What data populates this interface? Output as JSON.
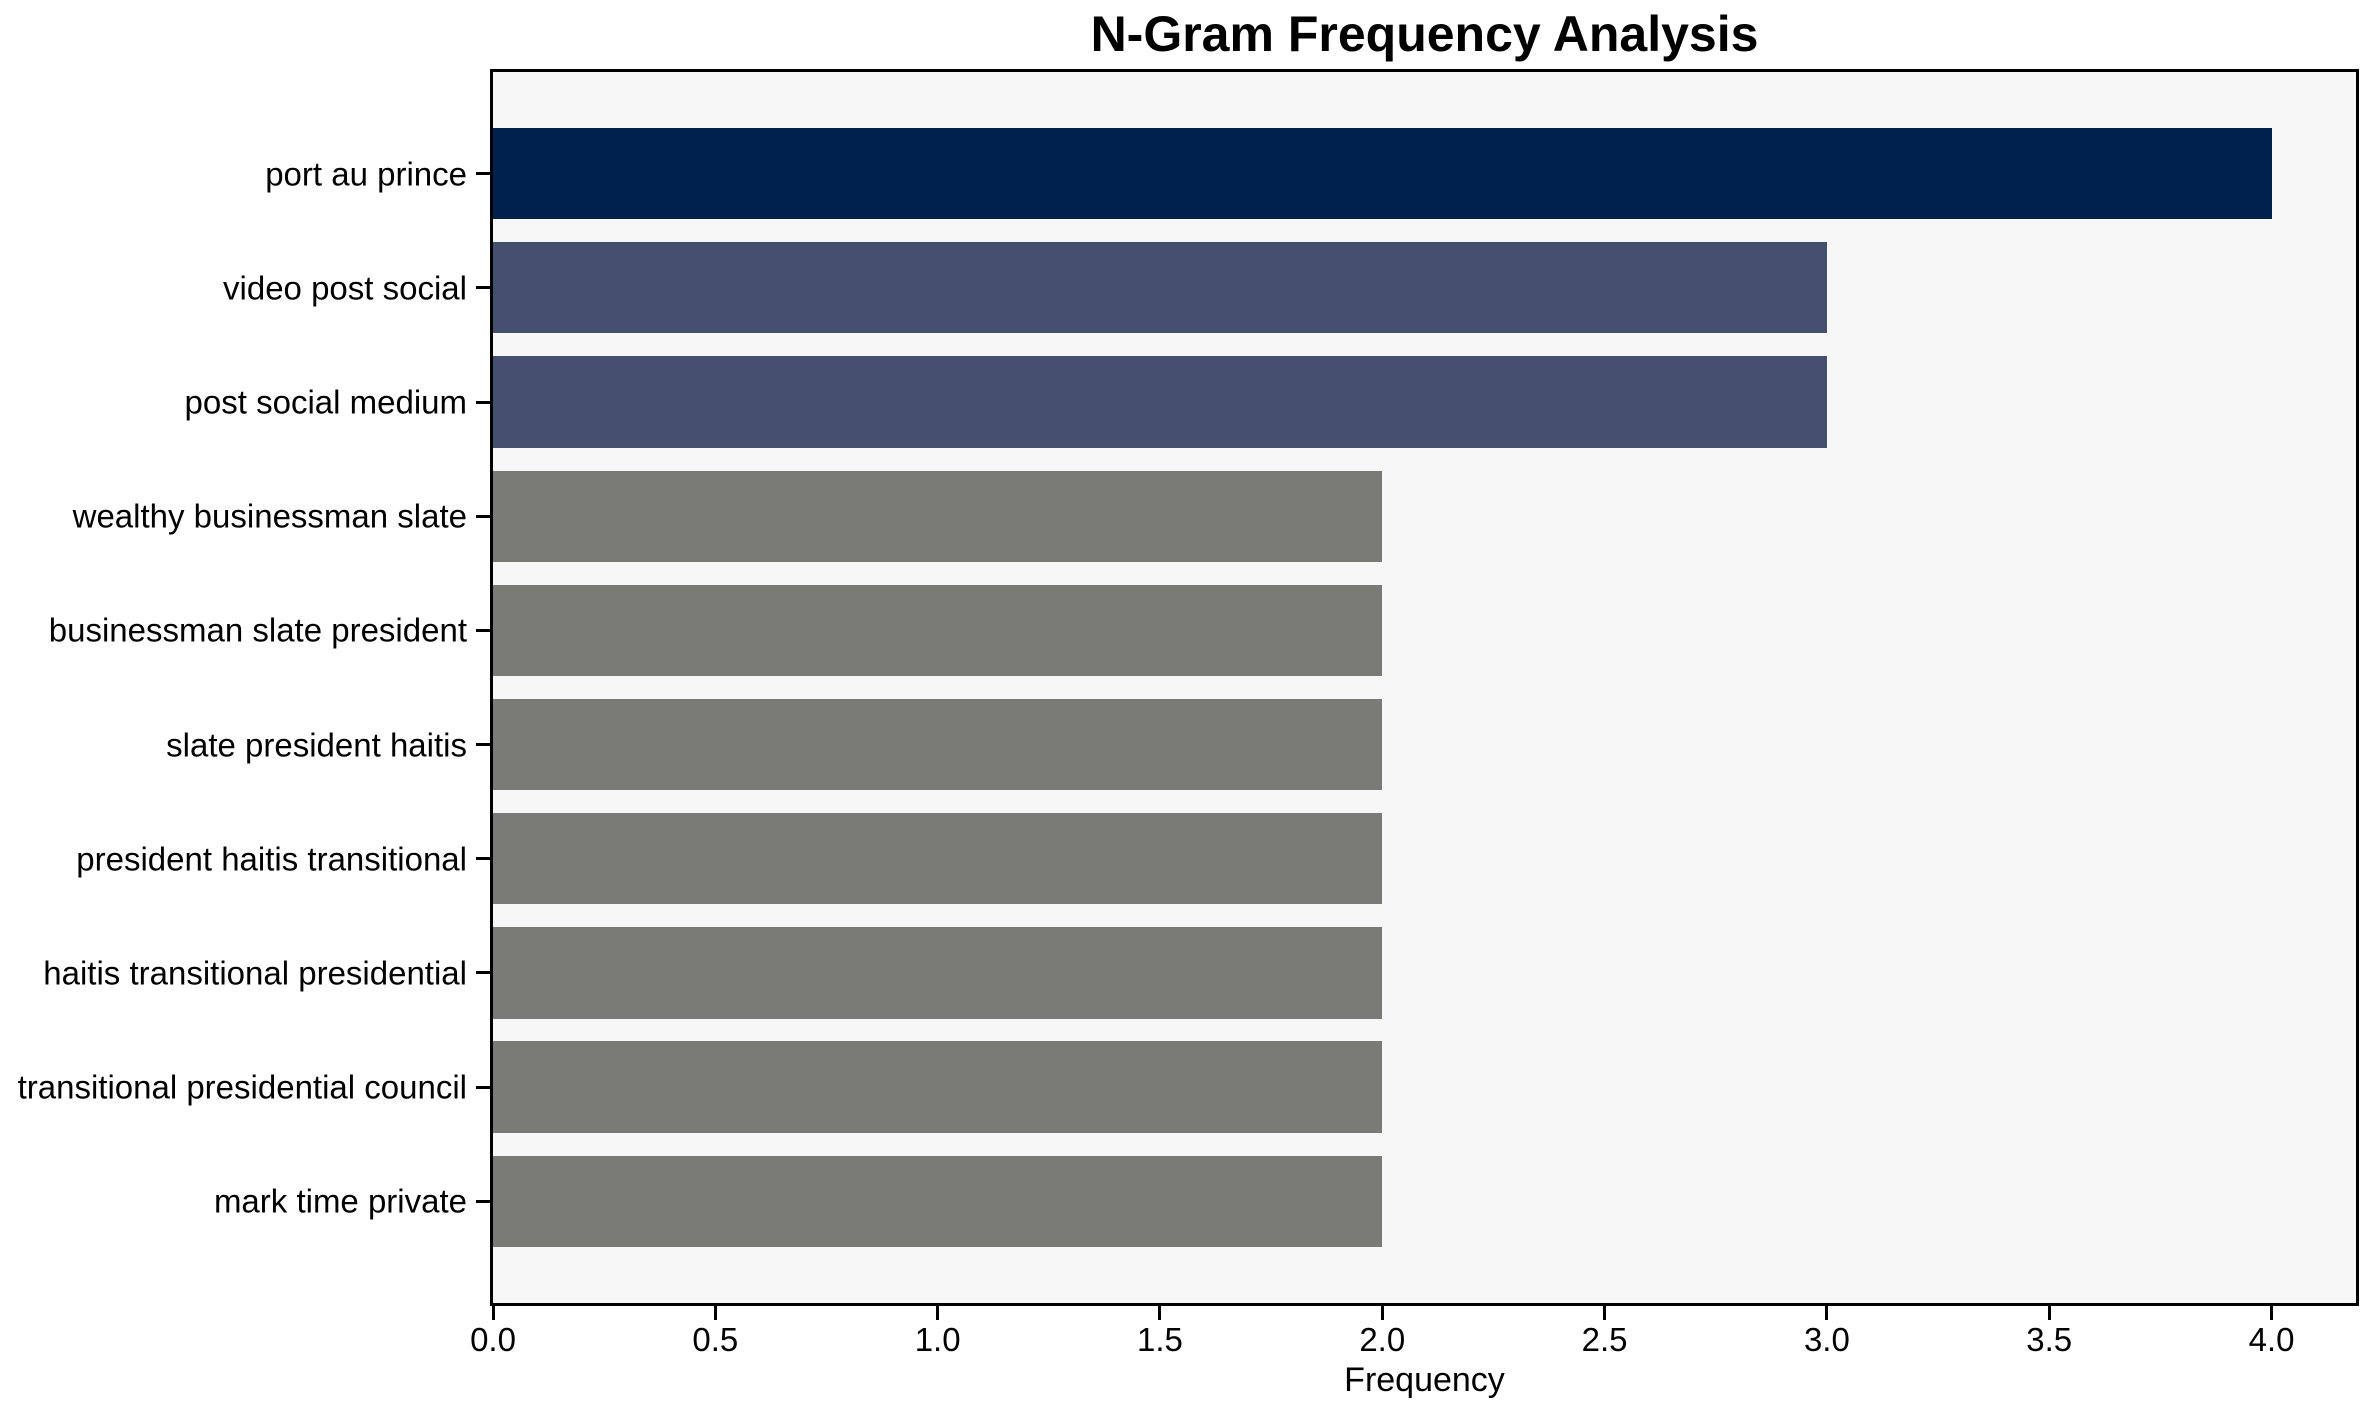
{
  "figure": {
    "background": "#ffffff",
    "plot_background": "#f7f7f8",
    "spine_color": "#000000",
    "text_color": "#000000"
  },
  "chart_data": {
    "type": "bar",
    "orientation": "horizontal",
    "title": "N-Gram Frequency Analysis",
    "xlabel": "Frequency",
    "ylabel": "",
    "categories": [
      "port au prince",
      "video post social",
      "post social medium",
      "wealthy businessman slate",
      "businessman slate president",
      "slate president haitis",
      "president haitis transitional",
      "haitis transitional presidential",
      "transitional presidential council",
      "mark time private"
    ],
    "values": [
      4,
      3,
      3,
      2,
      2,
      2,
      2,
      2,
      2,
      2
    ],
    "bar_colors": [
      "#00214d",
      "#454f6e",
      "#454f6e",
      "#7a7a76",
      "#7a7a76",
      "#7a7a76",
      "#7a7a76",
      "#7a7a76",
      "#7a7a76",
      "#7a7a76"
    ],
    "xlim": [
      0,
      4.19
    ],
    "xticks": [
      0,
      0.5,
      1,
      1.5,
      2,
      2.5,
      3,
      3.5,
      4
    ],
    "xtick_labels": [
      "0.0",
      "0.5",
      "1.0",
      "1.5",
      "2.0",
      "2.5",
      "3.0",
      "3.5",
      "4.0"
    ],
    "bar_height_fraction": 0.8,
    "grid": false,
    "legend": null
  }
}
